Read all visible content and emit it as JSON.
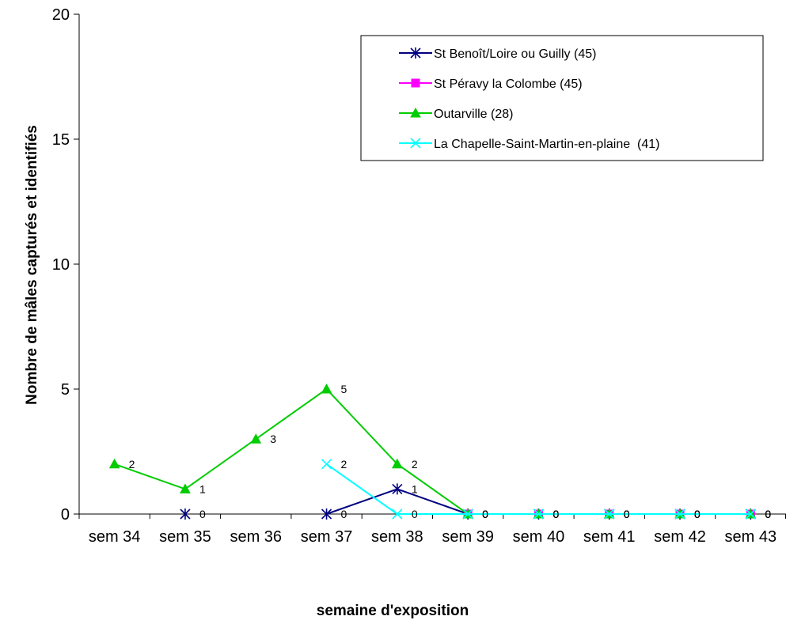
{
  "chart_data": {
    "type": "line",
    "title": "",
    "xlabel": "semaine d'exposition",
    "ylabel": "Nombre de mâles capturés et identifiés",
    "ylim": [
      0,
      20
    ],
    "yticks": [
      0,
      5,
      10,
      15,
      20
    ],
    "categories": [
      "sem 34",
      "sem 35",
      "sem 36",
      "sem 37",
      "sem 38",
      "sem 39",
      "sem 40",
      "sem 41",
      "sem 42",
      "sem 43"
    ],
    "grid": false,
    "legend_position": "top-right",
    "series": [
      {
        "name": "St Benoît/Loire ou Guilly (45)",
        "color": "#000080",
        "marker": "asterisk",
        "values": [
          null,
          0,
          null,
          0,
          1,
          0,
          0,
          0,
          0,
          0
        ],
        "labels": [
          null,
          "0",
          null,
          "0",
          "1",
          "0",
          "0",
          "0",
          "0",
          "0"
        ]
      },
      {
        "name": "St Péravy la Colombe (45)",
        "color": "#ff00ff",
        "marker": "square",
        "values": [
          null,
          null,
          null,
          null,
          null,
          0,
          0,
          0,
          0,
          0
        ],
        "labels": [
          null,
          null,
          null,
          null,
          null,
          "0",
          "0",
          "0",
          "0",
          "0"
        ]
      },
      {
        "name": "Outarville (28)",
        "color": "#00cc00",
        "marker": "triangle",
        "values": [
          2,
          1,
          3,
          5,
          2,
          0,
          0,
          0,
          0,
          0
        ],
        "labels": [
          "2",
          "1",
          "3",
          "5",
          "2",
          "0",
          "0",
          "0",
          "0",
          "0"
        ]
      },
      {
        "name": "La Chapelle-Saint-Martin-en-plaine  (41)",
        "color": "#00ffff",
        "marker": "x",
        "values": [
          null,
          null,
          null,
          2,
          0,
          0,
          0,
          0,
          0,
          0
        ],
        "labels": [
          null,
          null,
          null,
          "2",
          "0",
          "0",
          "0",
          "0",
          "0",
          "0"
        ]
      }
    ]
  }
}
